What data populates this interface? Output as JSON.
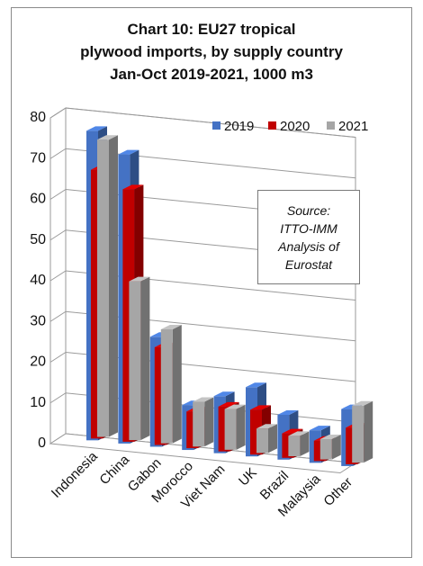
{
  "chart_data": {
    "type": "bar",
    "title_lines": [
      "Chart 10: EU27 tropical",
      "plywood imports, by supply country",
      "Jan-Oct 2019-2021, 1000 m3"
    ],
    "categories": [
      "Indonesia",
      "China",
      "Gabon",
      "Morocco",
      "Viet Nam",
      "UK",
      "Brazil",
      "Malaysia",
      "Other"
    ],
    "series": [
      {
        "name": "2019",
        "color": "#4472C4",
        "values": [
          76,
          71,
          27,
          11,
          14,
          17,
          11,
          8,
          14
        ]
      },
      {
        "name": "2020",
        "color": "#C00000",
        "values": [
          66,
          62,
          24,
          9,
          11,
          11,
          6,
          5,
          9
        ]
      },
      {
        "name": "2021",
        "color": "#A6A6A6",
        "values": [
          73,
          39,
          28,
          11,
          10,
          6,
          5,
          5,
          14
        ]
      }
    ],
    "ylim": [
      0,
      80
    ],
    "yticks": [
      0,
      10,
      20,
      30,
      40,
      50,
      60,
      70,
      80
    ],
    "grid": true,
    "legend": "top-right",
    "annotation_lines": [
      "Source:",
      "ITTO-IMM",
      "Analysis of",
      "Eurostat"
    ]
  }
}
